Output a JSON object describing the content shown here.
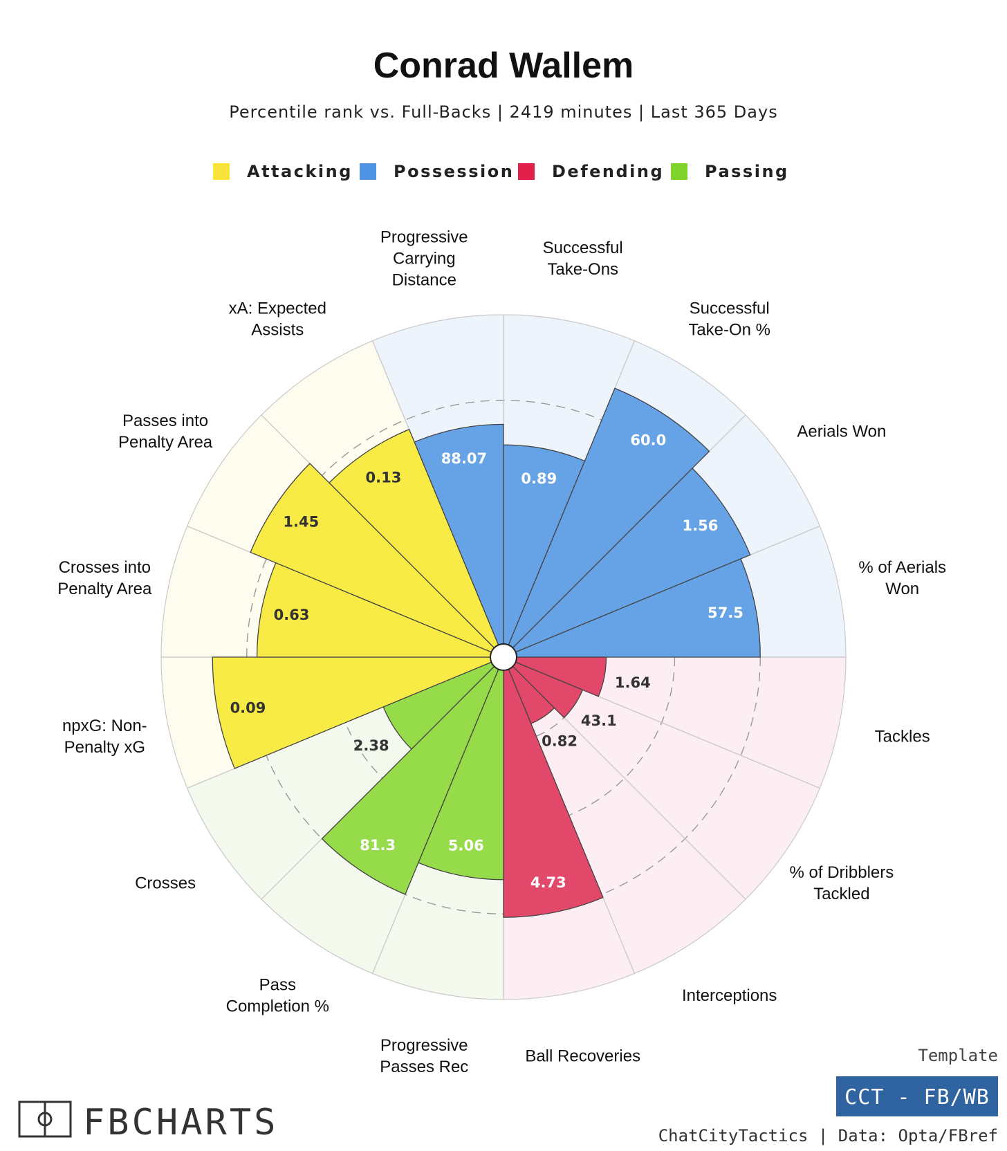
{
  "header": {
    "title": "Conrad Wallem",
    "subtitle": "Percentile rank vs. Full-Backs | 2419 minutes | Last 365 Days"
  },
  "colors": {
    "Attacking": "#f8eb45",
    "Possession": "#66a2e6",
    "Defending": "#e2486a",
    "Passing": "#96dc4a",
    "legend_Attacking": "#f8e33a",
    "legend_Possession": "#4e93e4",
    "legend_Defending": "#e21f4b",
    "legend_Passing": "#7fd32c",
    "bg_Attacking": "#fefcee",
    "bg_Possession": "#eef4fb",
    "bg_Defending": "#fceef2",
    "bg_Passing": "#f3f9ec"
  },
  "legend": [
    {
      "key": "Attacking",
      "label": "Attacking"
    },
    {
      "key": "Possession",
      "label": "Possession"
    },
    {
      "key": "Defending",
      "label": "Defending"
    },
    {
      "key": "Passing",
      "label": "Passing"
    }
  ],
  "chart_data": {
    "type": "polar-bar",
    "scale": "percentile",
    "rlim": [
      0,
      100
    ],
    "gridlines": [
      25,
      50,
      75
    ],
    "metrics": [
      {
        "label": "Successful Take-Ons",
        "category": "Possession",
        "value": "0.89",
        "percentile": 62
      },
      {
        "label": "Successful Take-On %",
        "category": "Possession",
        "value": "60.0",
        "percentile": 85
      },
      {
        "label": "Aerials Won",
        "category": "Possession",
        "value": "1.56",
        "percentile": 78
      },
      {
        "label": "% of Aerials Won",
        "category": "Possession",
        "value": "57.5",
        "percentile": 75
      },
      {
        "label": "Tackles",
        "category": "Defending",
        "value": "1.64",
        "percentile": 30
      },
      {
        "label": "% of Dribblers Tackled",
        "category": "Defending",
        "value": "43.1",
        "percentile": 25
      },
      {
        "label": "Interceptions",
        "category": "Defending",
        "value": "0.82",
        "percentile": 21
      },
      {
        "label": "Ball Recoveries",
        "category": "Defending",
        "value": "4.73",
        "percentile": 76
      },
      {
        "label": "Progressive Passes Rec",
        "category": "Passing",
        "value": "5.06",
        "percentile": 65
      },
      {
        "label": "Pass Completion %",
        "category": "Passing",
        "value": "81.3",
        "percentile": 75
      },
      {
        "label": "Crosses",
        "category": "Passing",
        "value": "2.38",
        "percentile": 38
      },
      {
        "label": "npxG: Non-Penalty xG",
        "category": "Attacking",
        "value": "0.09",
        "percentile": 85
      },
      {
        "label": "Crosses into Penalty Area",
        "category": "Attacking",
        "value": "0.63",
        "percentile": 72
      },
      {
        "label": "Passes into Penalty Area",
        "category": "Attacking",
        "value": "1.45",
        "percentile": 80
      },
      {
        "label": "xA: Expected Assists",
        "category": "Attacking",
        "value": "0.13",
        "percentile": 72
      },
      {
        "label": "Progressive Carrying Distance",
        "category": "Possession",
        "value": "88.07",
        "percentile": 68
      }
    ]
  },
  "footer": {
    "brand": "FBCHARTS",
    "template_label": "Template",
    "template_name": "CCT - FB/WB",
    "credit": "ChatCityTactics | Data: Opta/FBref"
  }
}
